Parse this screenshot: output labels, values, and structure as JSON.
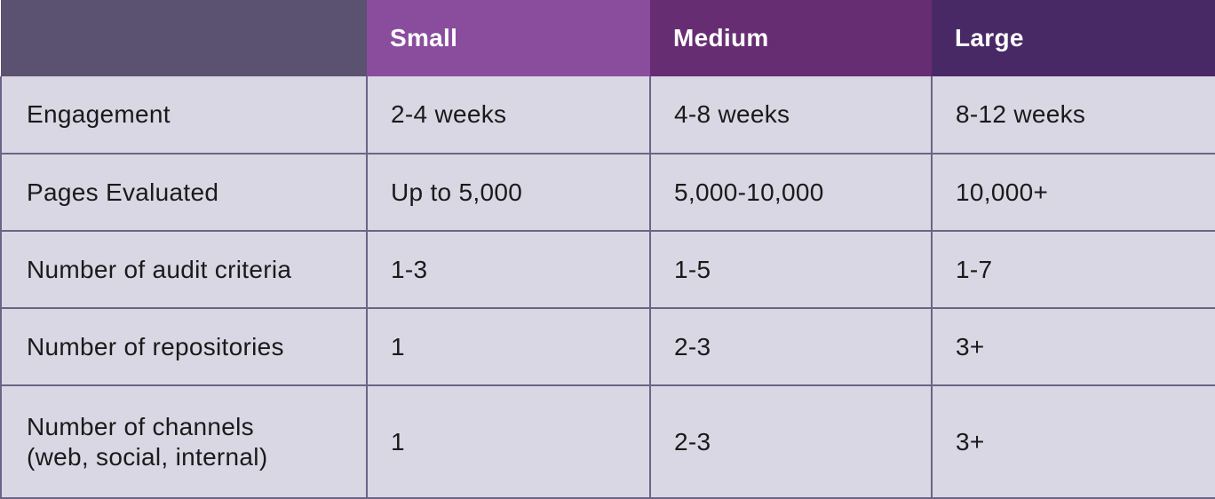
{
  "colors": {
    "header-col0-bg": "#5a5270",
    "header-small-bg": "#8a4d9e",
    "header-medium-bg": "#672d72",
    "header-large-bg": "#482966",
    "header-text": "#ffffff",
    "cell-bg": "#dad7e4",
    "grid-border": "#6b6486",
    "body-text": "#1a1a1a"
  },
  "chart_data": {
    "type": "table",
    "title": "",
    "columns": [
      "",
      "Small",
      "Medium",
      "Large"
    ],
    "rows": [
      [
        "Engagement",
        "2-4 weeks",
        "4-8 weeks",
        "8-12 weeks"
      ],
      [
        "Pages Evaluated",
        "Up to 5,000",
        "5,000-10,000",
        "10,000+"
      ],
      [
        "Number of audit criteria",
        "1-3",
        "1-5",
        "1-7"
      ],
      [
        "Number of repositories",
        "1",
        "2-3",
        "3+"
      ],
      [
        "Number of channels\n(web, social, internal)",
        "1",
        "2-3",
        "3+"
      ]
    ]
  }
}
